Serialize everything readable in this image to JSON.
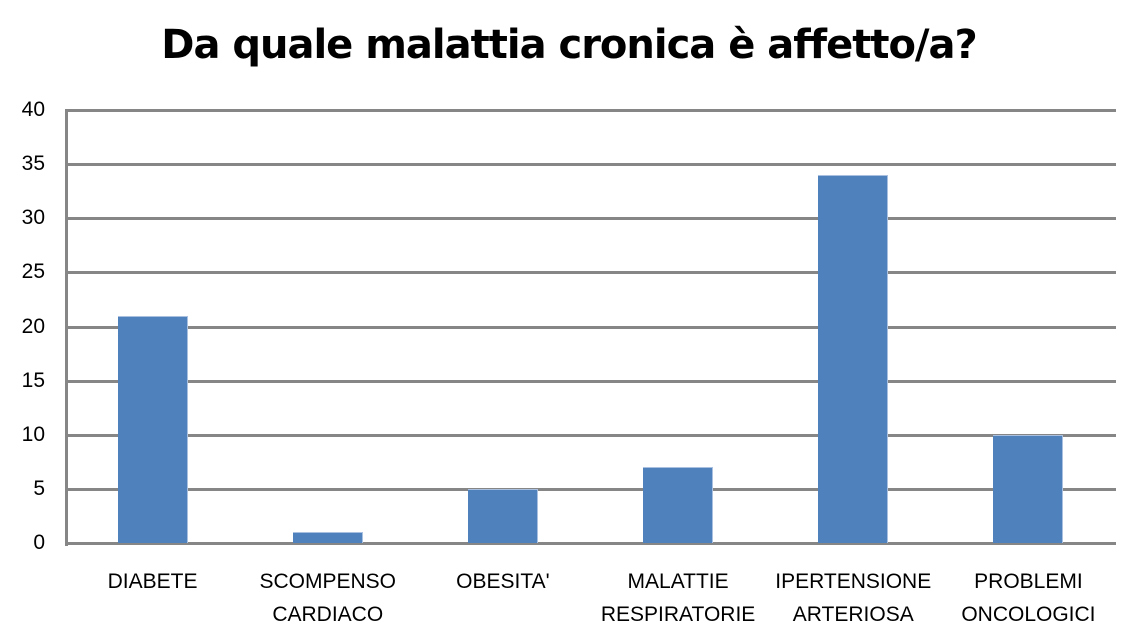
{
  "chart_data": {
    "type": "bar",
    "title": "Da quale malattia cronica è affetto/a?",
    "xlabel": "",
    "ylabel": "",
    "ylim": [
      0,
      40
    ],
    "yticks": [
      "0",
      "5",
      "10",
      "15",
      "20",
      "25",
      "30",
      "35",
      "40"
    ],
    "grid": true,
    "legend": null,
    "bar_color": "#4f81bd",
    "categories": [
      "DIABETE",
      "SCOMPENSO\nCARDIACO",
      "OBESITA'",
      "MALATTIE\nRESPIRATORIE",
      "IPERTENSIONE\nARTERIOSA",
      "PROBLEMI\nONCOLOGICI"
    ],
    "values": [
      21,
      1,
      5,
      7,
      34,
      10
    ]
  }
}
